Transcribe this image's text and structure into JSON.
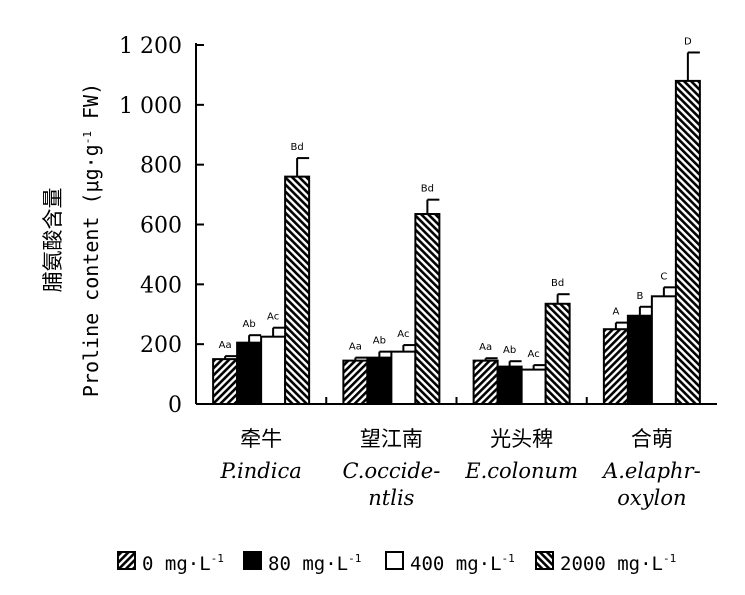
{
  "chart_data": {
    "type": "bar",
    "ylabel_zh": "脯氨酸含量",
    "ylabel_en": "Proline content (μg·g",
    "ylabel_en_sup": "-1",
    "ylabel_en_tail": " FW)",
    "ylim": [
      0,
      1200
    ],
    "yticks": [
      0,
      200,
      400,
      600,
      800,
      1000,
      1200
    ],
    "ytick_labels": [
      "0",
      "200",
      "400",
      "600",
      "800",
      "1 000",
      "1 200"
    ],
    "categories": [
      {
        "zh": "牵牛",
        "en": [
          "P.indica"
        ]
      },
      {
        "zh": "望江南",
        "en": [
          "C.occide-",
          "ntlis"
        ]
      },
      {
        "zh": "光头稗",
        "en": [
          "E.colonum"
        ]
      },
      {
        "zh": "合萌",
        "en": [
          "A.elaphr-",
          "oxylon"
        ]
      }
    ],
    "series": [
      {
        "name": "0 mg·L",
        "sup": "-1",
        "pattern": "diag-right",
        "values": [
          150,
          145,
          145,
          250
        ],
        "errors": [
          10,
          10,
          8,
          22
        ],
        "labels": [
          "Aa",
          "Aa",
          "Aa",
          "A"
        ]
      },
      {
        "name": "80 mg·L",
        "sup": "-1",
        "pattern": "solid",
        "values": [
          205,
          155,
          125,
          295
        ],
        "errors": [
          25,
          20,
          18,
          30
        ],
        "labels": [
          "Ab",
          "Ab",
          "Ab",
          "B"
        ]
      },
      {
        "name": "400 mg·L",
        "sup": "-1",
        "pattern": "white",
        "values": [
          225,
          175,
          115,
          360
        ],
        "errors": [
          30,
          22,
          15,
          30
        ],
        "labels": [
          "Ac",
          "Ac",
          "Ac",
          "C"
        ]
      },
      {
        "name": "2000 mg·L",
        "sup": "-1",
        "pattern": "diag-left",
        "values": [
          760,
          635,
          335,
          1080
        ],
        "errors": [
          62,
          48,
          32,
          95
        ],
        "labels": [
          "Bd",
          "Bd",
          "Bd",
          "D"
        ]
      }
    ],
    "grid": false,
    "legend": "bottom"
  }
}
